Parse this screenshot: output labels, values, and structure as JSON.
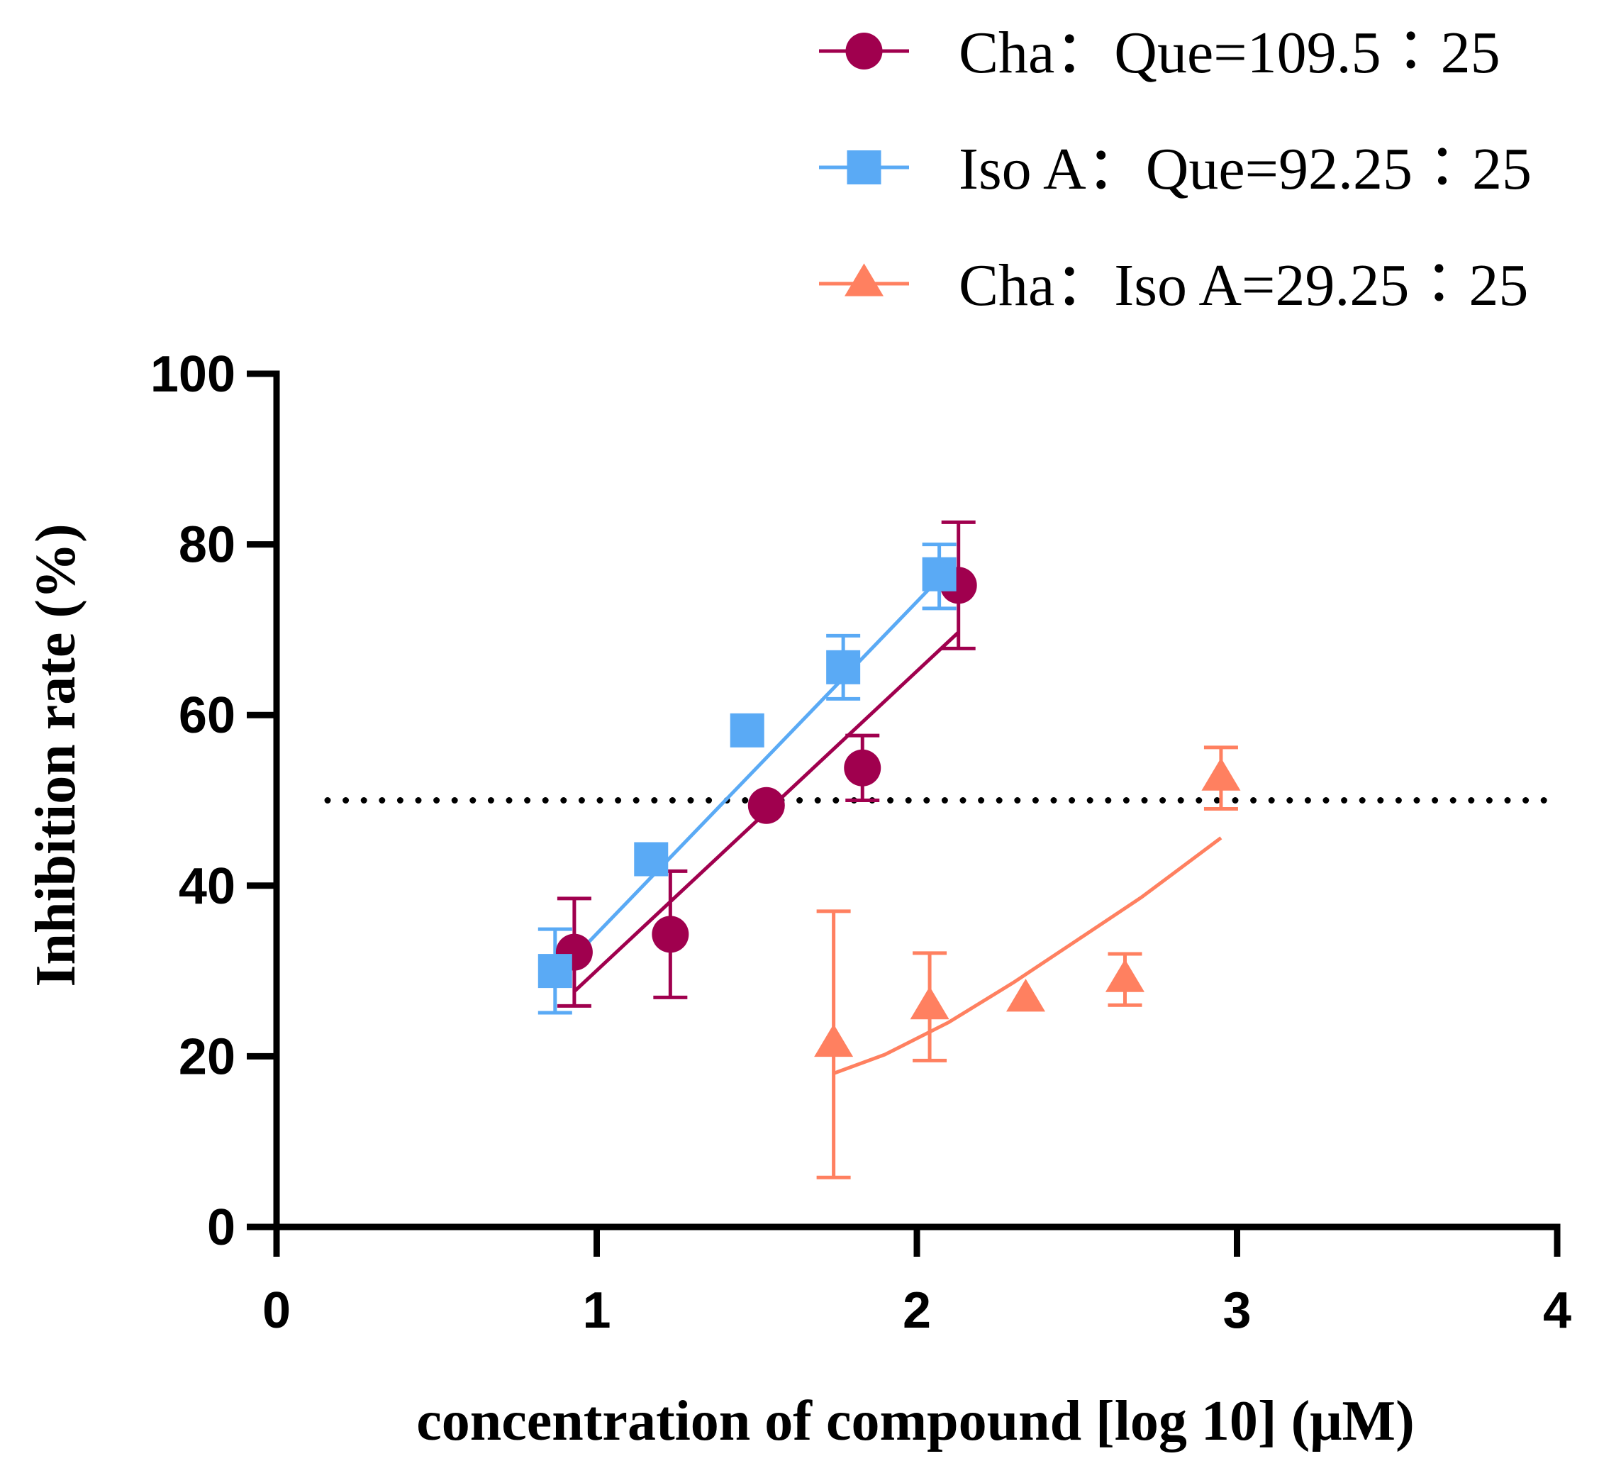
{
  "chart_data": {
    "type": "scatter",
    "title": "",
    "xlabel": "concentration of compound [log 10] (μM)",
    "ylabel": "Inhibition rate (%)",
    "xlim": [
      0,
      4
    ],
    "ylim": [
      0,
      100
    ],
    "xticks": [
      0,
      1,
      2,
      3,
      4
    ],
    "yticks": [
      0,
      20,
      40,
      60,
      80,
      100
    ],
    "xtick_labels": [
      "0",
      "1",
      "2",
      "3",
      "4"
    ],
    "ytick_labels": [
      "0",
      "20",
      "40",
      "60",
      "80",
      "100"
    ],
    "grid": false,
    "legend_position": "top-right",
    "reference_line": {
      "y": 50,
      "style": "dotted",
      "color": "#000000"
    },
    "series": [
      {
        "name": "Cha：Que=109.5∶25",
        "marker": "circle",
        "color": "#A0004E",
        "x": [
          0.93,
          1.23,
          1.53,
          1.83,
          2.13
        ],
        "y": [
          32.2,
          34.3,
          49.4,
          53.8,
          75.2
        ],
        "err_low": [
          6.3,
          7.4,
          0,
          3.8,
          7.4
        ],
        "err_high": [
          6.3,
          7.4,
          0,
          3.8,
          7.4
        ],
        "fit": {
          "x": [
            0.93,
            2.13
          ],
          "y": [
            27.6,
            69.7
          ]
        }
      },
      {
        "name": "Iso A：Que=92.25∶25",
        "marker": "square",
        "color": "#5AAAF5",
        "x": [
          0.87,
          1.17,
          1.47,
          1.77,
          2.07
        ],
        "y": [
          30.0,
          43.1,
          58.2,
          65.6,
          76.5
        ],
        "err_low": [
          4.9,
          0,
          0,
          3.7,
          4.0
        ],
        "err_high": [
          4.9,
          0,
          0,
          3.7,
          3.5
        ],
        "fit": {
          "x": [
            0.87,
            2.07
          ],
          "y": [
            29.3,
            76.0
          ]
        }
      },
      {
        "name": "Cha：Iso A=29.25∶25",
        "marker": "triangle",
        "color": "#FF8060",
        "x": [
          1.74,
          2.04,
          2.34,
          2.65,
          2.95
        ],
        "y": [
          21.4,
          25.8,
          26.7,
          29.0,
          52.6
        ],
        "err_low": [
          15.6,
          6.3,
          0,
          3.0,
          3.6
        ],
        "err_high": [
          15.6,
          6.3,
          0,
          3.0,
          3.6
        ],
        "fit": {
          "x": [
            1.74,
            1.9,
            2.1,
            2.3,
            2.5,
            2.7,
            2.95
          ],
          "y": [
            18.0,
            20.2,
            24.0,
            28.6,
            33.6,
            38.6,
            45.6
          ]
        }
      }
    ]
  }
}
